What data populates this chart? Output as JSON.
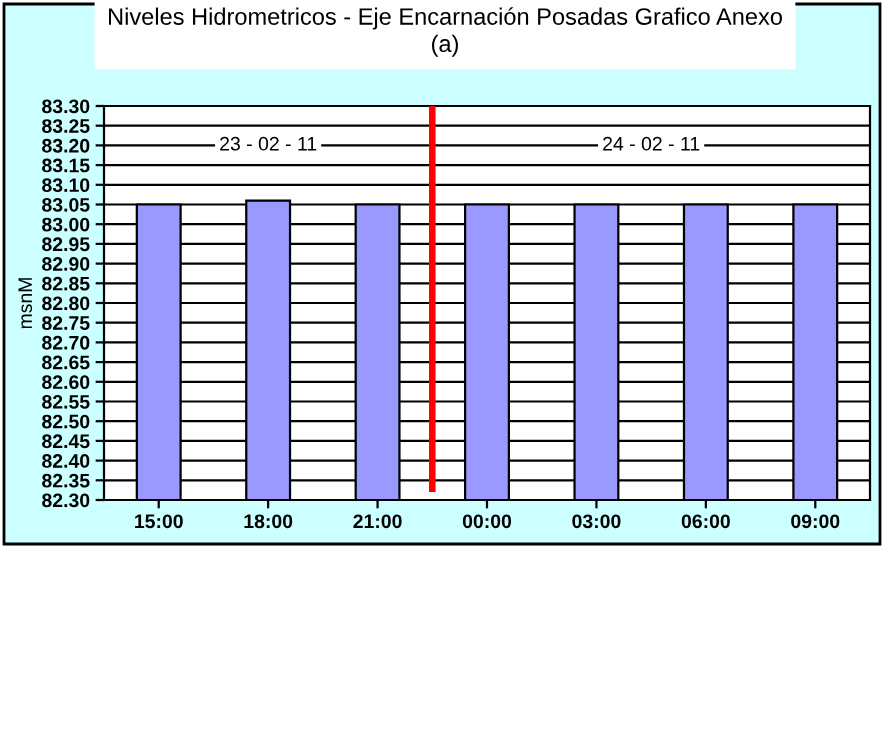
{
  "chart_data": {
    "type": "bar",
    "title": "Niveles Hidrometricos - Eje Encarnación Posadas Grafico Anexo\n(a)",
    "ylabel": "msnM",
    "categories": [
      "15:00",
      "18:00",
      "21:00",
      "00:00",
      "03:00",
      "06:00",
      "09:00"
    ],
    "series": [
      {
        "color": "#9999ff",
        "values": [
          83.05,
          83.06,
          83.05,
          83.05,
          83.05,
          83.05,
          83.05
        ]
      }
    ],
    "ylim": [
      82.3,
      83.3
    ],
    "yticks": [
      {
        "value": 82.3,
        "label": "82.30"
      },
      82.35,
      {
        "value": 82.4,
        "label": "82.40"
      },
      82.45,
      {
        "value": 82.5,
        "label": "82.50"
      },
      82.55,
      {
        "value": 82.6,
        "label": "82.60"
      },
      82.65,
      {
        "value": 82.7,
        "label": "82.70"
      },
      82.75,
      {
        "value": 82.8,
        "label": "82.80"
      },
      82.85,
      {
        "value": 82.9,
        "label": "82.90"
      },
      82.95,
      {
        "value": 83.0,
        "label": "83.00"
      },
      83.05,
      {
        "value": 83.1,
        "label": "83.10"
      },
      83.15,
      {
        "value": 83.2,
        "label": "83.20"
      },
      83.25,
      {
        "value": 83.3,
        "label": "83.30"
      }
    ],
    "annotations": [
      "23 - 02 - 11",
      "24 - 02 - 11"
    ],
    "grid": "y",
    "legend": false
  }
}
